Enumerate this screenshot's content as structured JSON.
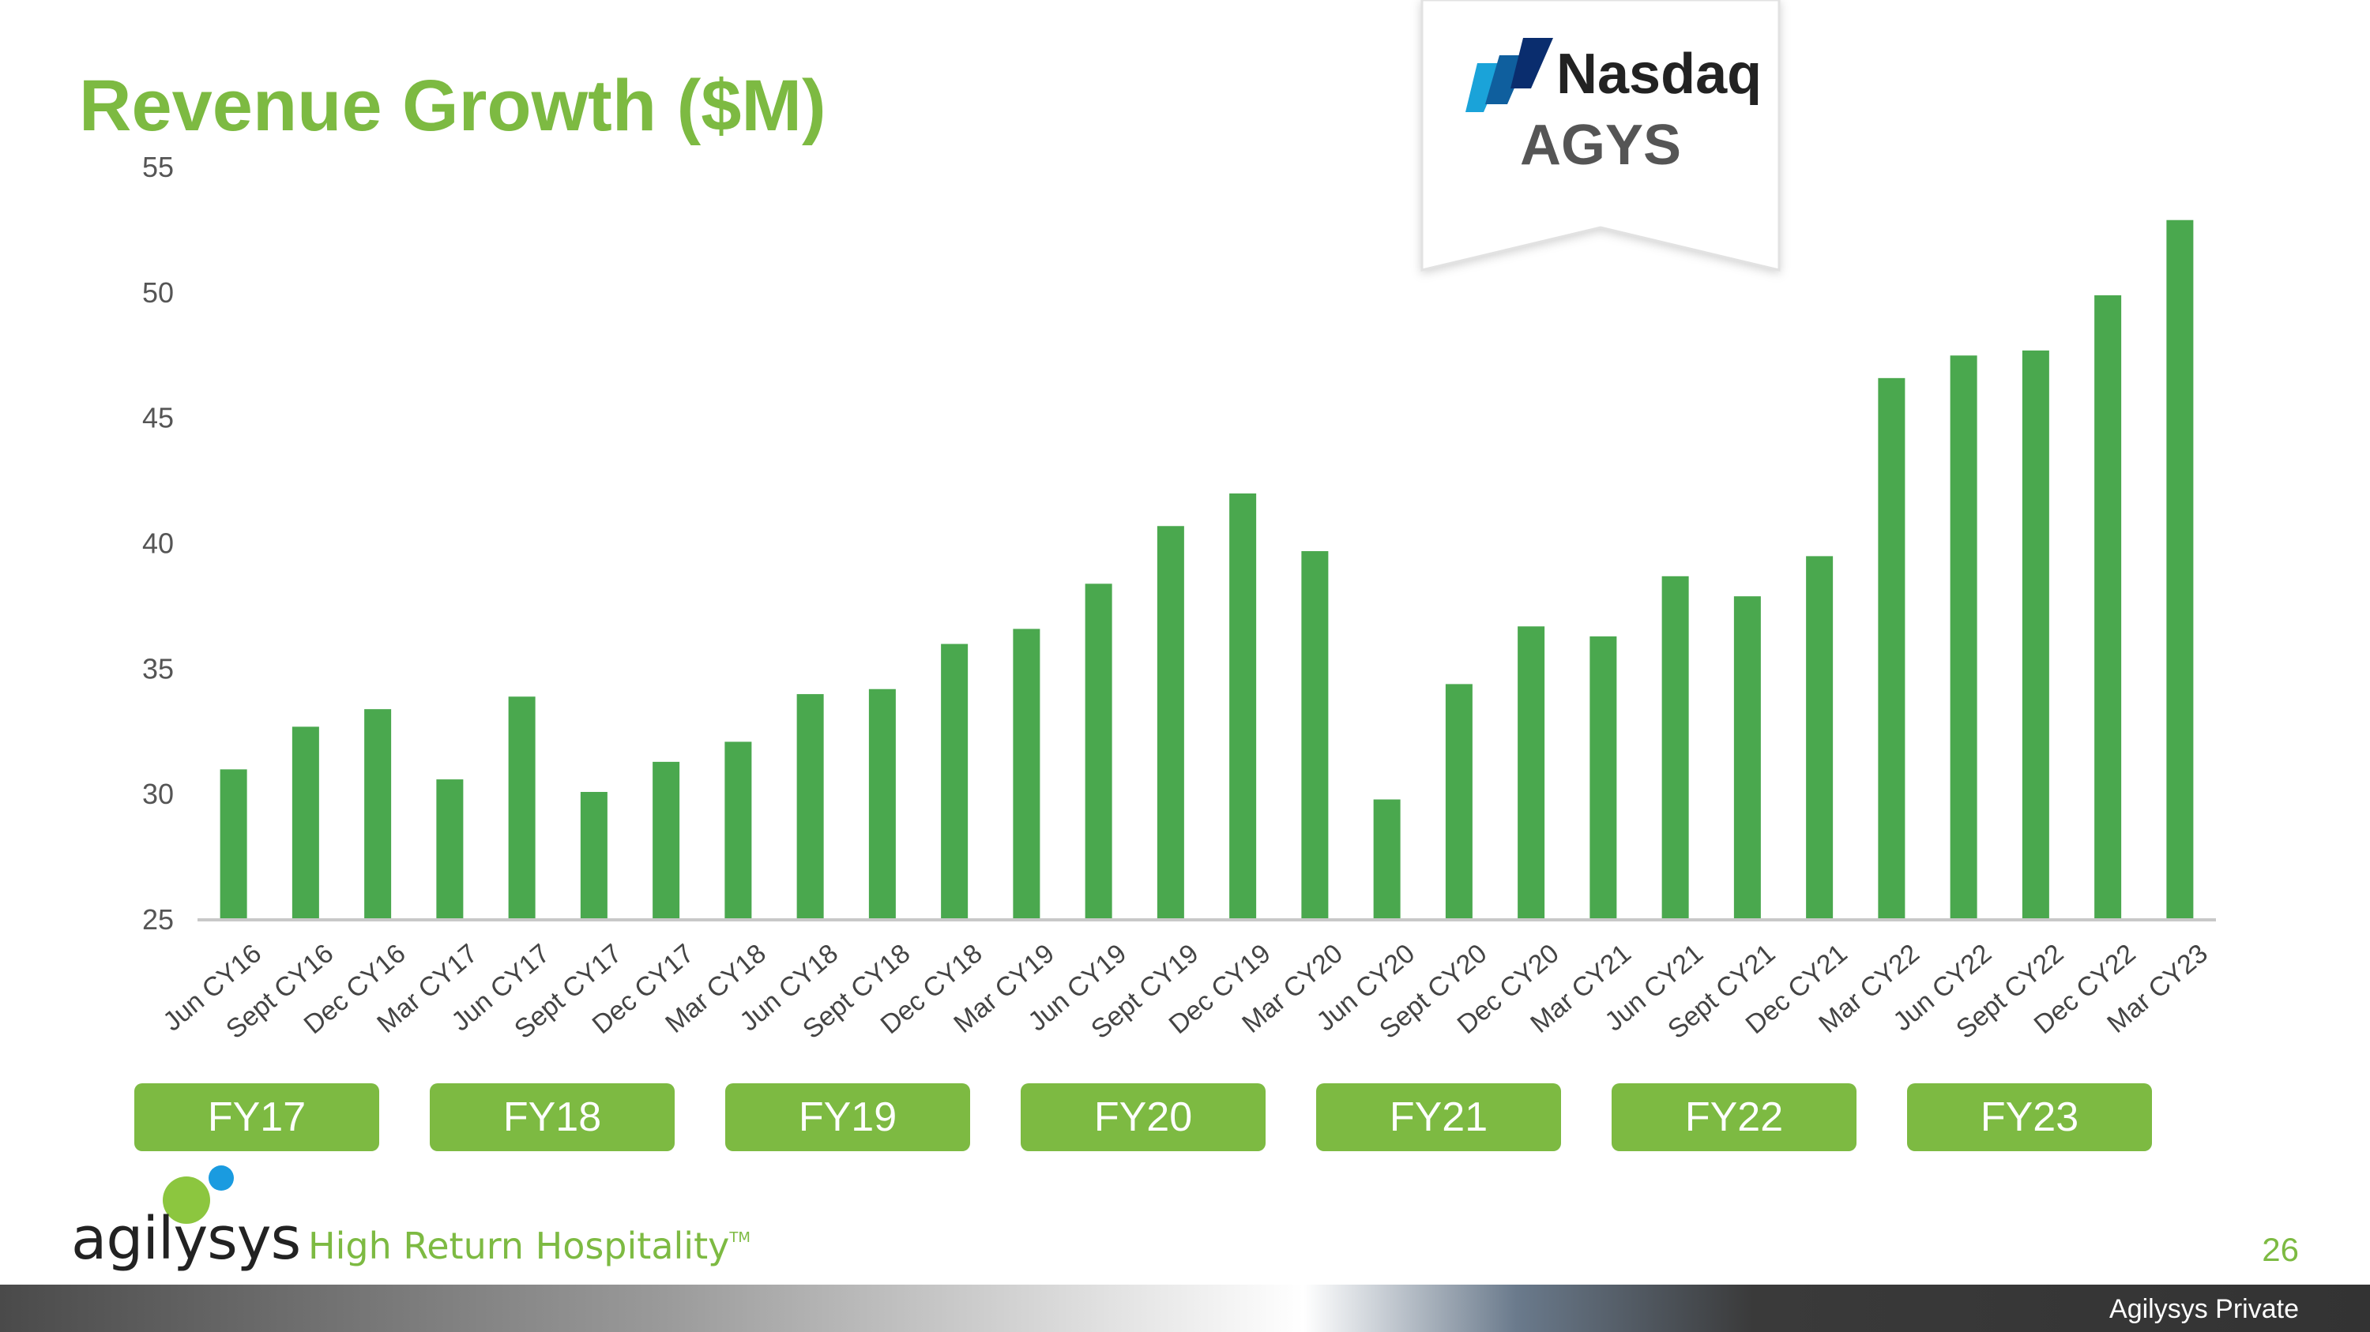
{
  "title": "Revenue Growth ($M)",
  "ticker": {
    "exchange": "Nasdaq",
    "symbol": "AGYS"
  },
  "fiscal_years": [
    "FY17",
    "FY18",
    "FY19",
    "FY20",
    "FY21",
    "FY22",
    "FY23"
  ],
  "brand": {
    "logo_text": "agilysys",
    "tagline": "High Return Hospitality",
    "trademark": "TM"
  },
  "page_number": "26",
  "footer": "Agilysys Private",
  "colors": {
    "bar": "#4aa84e",
    "title": "#7dba42",
    "fy_box": "#7dba42",
    "axis": "#c8c8c8",
    "logo_dot_green": "#8cc63f",
    "logo_dot_blue": "#1a9be0"
  },
  "chart_data": {
    "type": "bar",
    "categories": [
      "Jun CY16",
      "Sept CY16",
      "Dec CY16",
      "Mar CY17",
      "Jun CY17",
      "Sept CY17",
      "Dec CY17",
      "Mar CY18",
      "Jun CY18",
      "Sept CY18",
      "Dec CY18",
      "Mar CY19",
      "Jun CY19",
      "Sept CY19",
      "Dec CY19",
      "Mar CY20",
      "Jun CY20",
      "Sept CY20",
      "Dec CY20",
      "Mar CY21",
      "Jun CY21",
      "Sept CY21",
      "Dec CY21",
      "Mar CY22",
      "Jun CY22",
      "Sept CY22",
      "Dec CY22",
      "Mar CY23"
    ],
    "values": [
      31.0,
      32.7,
      33.4,
      30.6,
      33.9,
      30.1,
      31.3,
      32.1,
      34.0,
      34.2,
      36.0,
      36.6,
      38.4,
      40.7,
      42.0,
      39.7,
      29.8,
      34.4,
      36.7,
      36.3,
      38.7,
      37.9,
      39.5,
      46.6,
      47.5,
      47.7,
      49.9,
      52.9
    ],
    "title": "Revenue Growth ($M)",
    "xlabel": "",
    "ylabel": "",
    "ylim": [
      25,
      55
    ],
    "yticks": [
      25,
      30,
      35,
      40,
      45,
      50,
      55
    ],
    "grid": false,
    "legend": "none"
  }
}
